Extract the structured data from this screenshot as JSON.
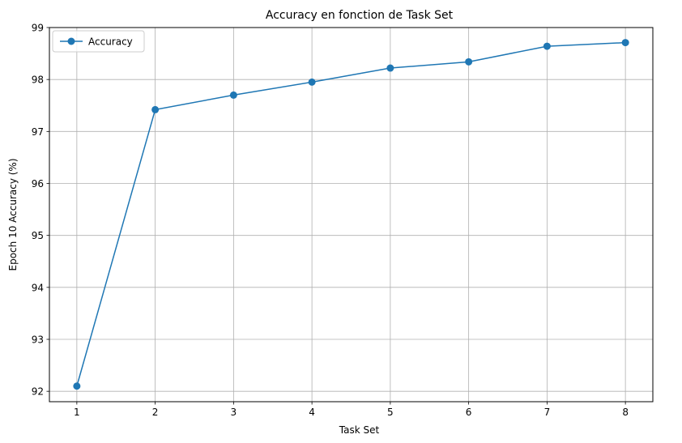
{
  "chart_data": {
    "type": "line",
    "title": "Accuracy en fonction de Task Set",
    "xlabel": "Task Set",
    "ylabel": "Epoch 10 Accuracy (%)",
    "x": [
      1,
      2,
      3,
      4,
      5,
      6,
      7,
      8
    ],
    "series": [
      {
        "name": "Accuracy",
        "values": [
          92.1,
          97.42,
          97.7,
          97.95,
          98.22,
          98.34,
          98.64,
          98.71
        ],
        "color": "#1f77b4",
        "marker": "circle"
      }
    ],
    "xticks": [
      "1",
      "2",
      "3",
      "4",
      "5",
      "6",
      "7",
      "8"
    ],
    "yticks": [
      "92",
      "93",
      "94",
      "95",
      "96",
      "97",
      "98",
      "99"
    ],
    "xlim": [
      0.65,
      8.35
    ],
    "ylim": [
      91.8,
      99.0
    ],
    "grid": true,
    "legend": "upper-left",
    "grid_color": "#b0b0b0"
  }
}
